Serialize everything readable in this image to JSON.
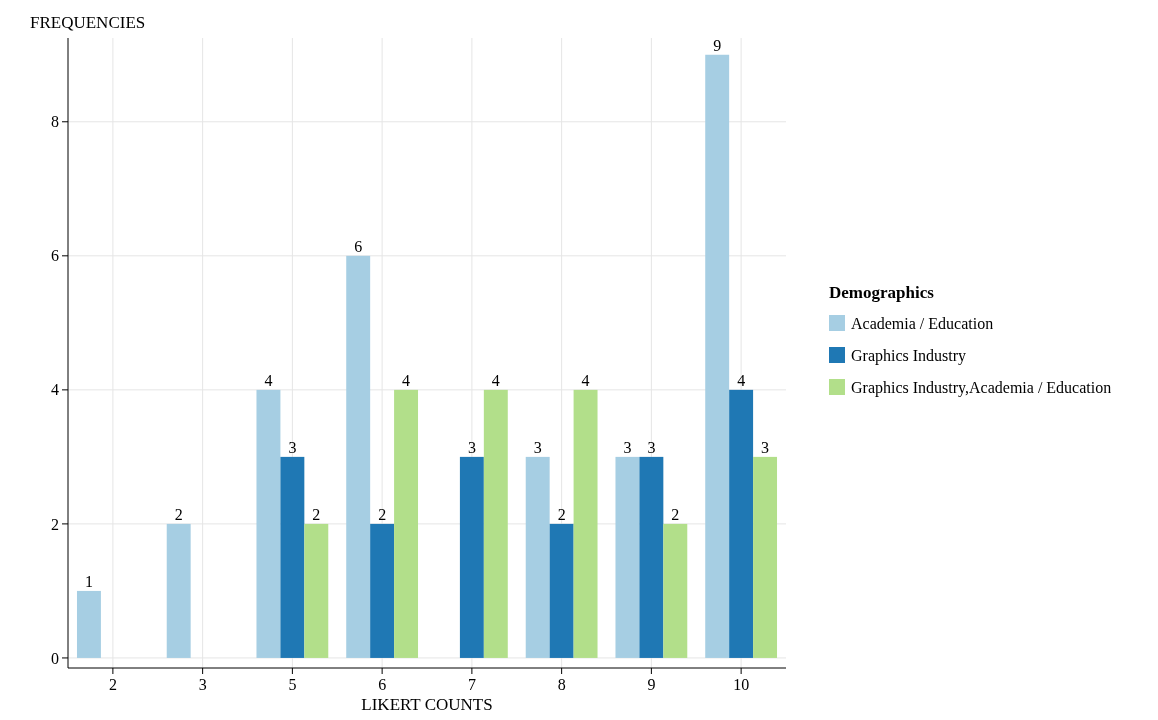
{
  "chart_data": {
    "type": "bar",
    "xlabel": "LIKERT COUNTS",
    "ylabel": "FREQUENCIES",
    "legend_title": "Demographics",
    "categories": [
      "2",
      "3",
      "5",
      "6",
      "7",
      "8",
      "9",
      "10"
    ],
    "series": [
      {
        "name": "Academia / Education",
        "color": "#a6cee3",
        "values": [
          1,
          2,
          4,
          6,
          null,
          3,
          3,
          9
        ]
      },
      {
        "name": "Graphics Industry",
        "color": "#1f78b4",
        "values": [
          null,
          null,
          3,
          2,
          3,
          2,
          3,
          4
        ]
      },
      {
        "name": "Graphics Industry,Academia / Education",
        "color": "#b2df8a",
        "values": [
          null,
          null,
          2,
          4,
          4,
          4,
          2,
          3
        ]
      }
    ],
    "ylim": [
      -0.15,
      9.25
    ],
    "yticks": [
      0,
      2,
      4,
      6,
      8
    ],
    "grid": true,
    "legend": "right",
    "data_labels": true
  }
}
